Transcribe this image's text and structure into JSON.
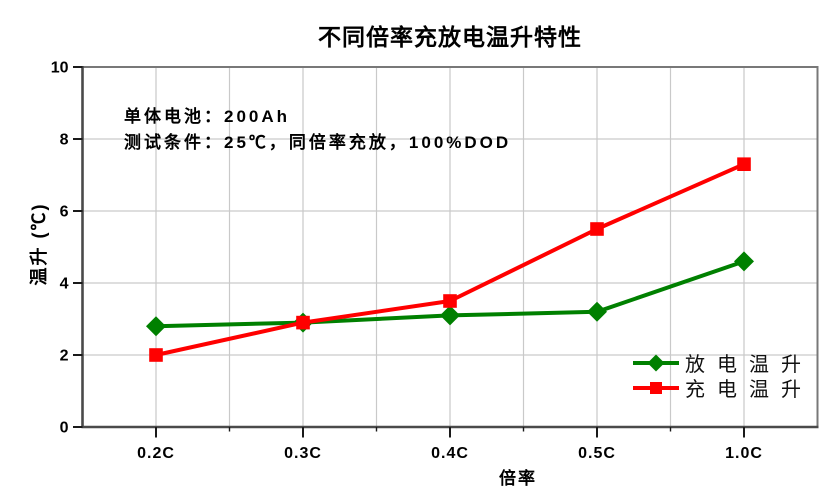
{
  "chart_data": {
    "type": "line",
    "title": "不同倍率充放电温升特性",
    "xlabel": "倍率",
    "ylabel": "温升 (℃)",
    "categories": [
      "0.2C",
      "0.3C",
      "0.4C",
      "0.5C",
      "1.0C"
    ],
    "series": [
      {
        "name": "放电温升",
        "marker": "diamond",
        "color": "#008000",
        "values": [
          2.8,
          2.9,
          3.1,
          3.2,
          4.6
        ]
      },
      {
        "name": "充电温升",
        "marker": "square",
        "color": "#ff0000",
        "values": [
          2.0,
          2.9,
          3.5,
          5.5,
          7.3
        ]
      }
    ],
    "ylim": [
      0,
      10
    ],
    "y_ticks": [
      0,
      2,
      4,
      6,
      8,
      10
    ],
    "grid": {
      "horizontal": "major",
      "vertical": "major-and-minor"
    },
    "legend_position": "inside-lower-right",
    "annotations": {
      "lines": [
        "单体电池：200Ah",
        "测试条件：25℃，同倍率充放，100%DOD"
      ]
    }
  },
  "style_colors": {
    "background": "#ffffff",
    "grid": "#c9c9c9",
    "frame": "#787878",
    "axis": "#4a4a4a",
    "tick": "#1a1a1a",
    "text": "#000000",
    "legend_text": "#111111"
  }
}
